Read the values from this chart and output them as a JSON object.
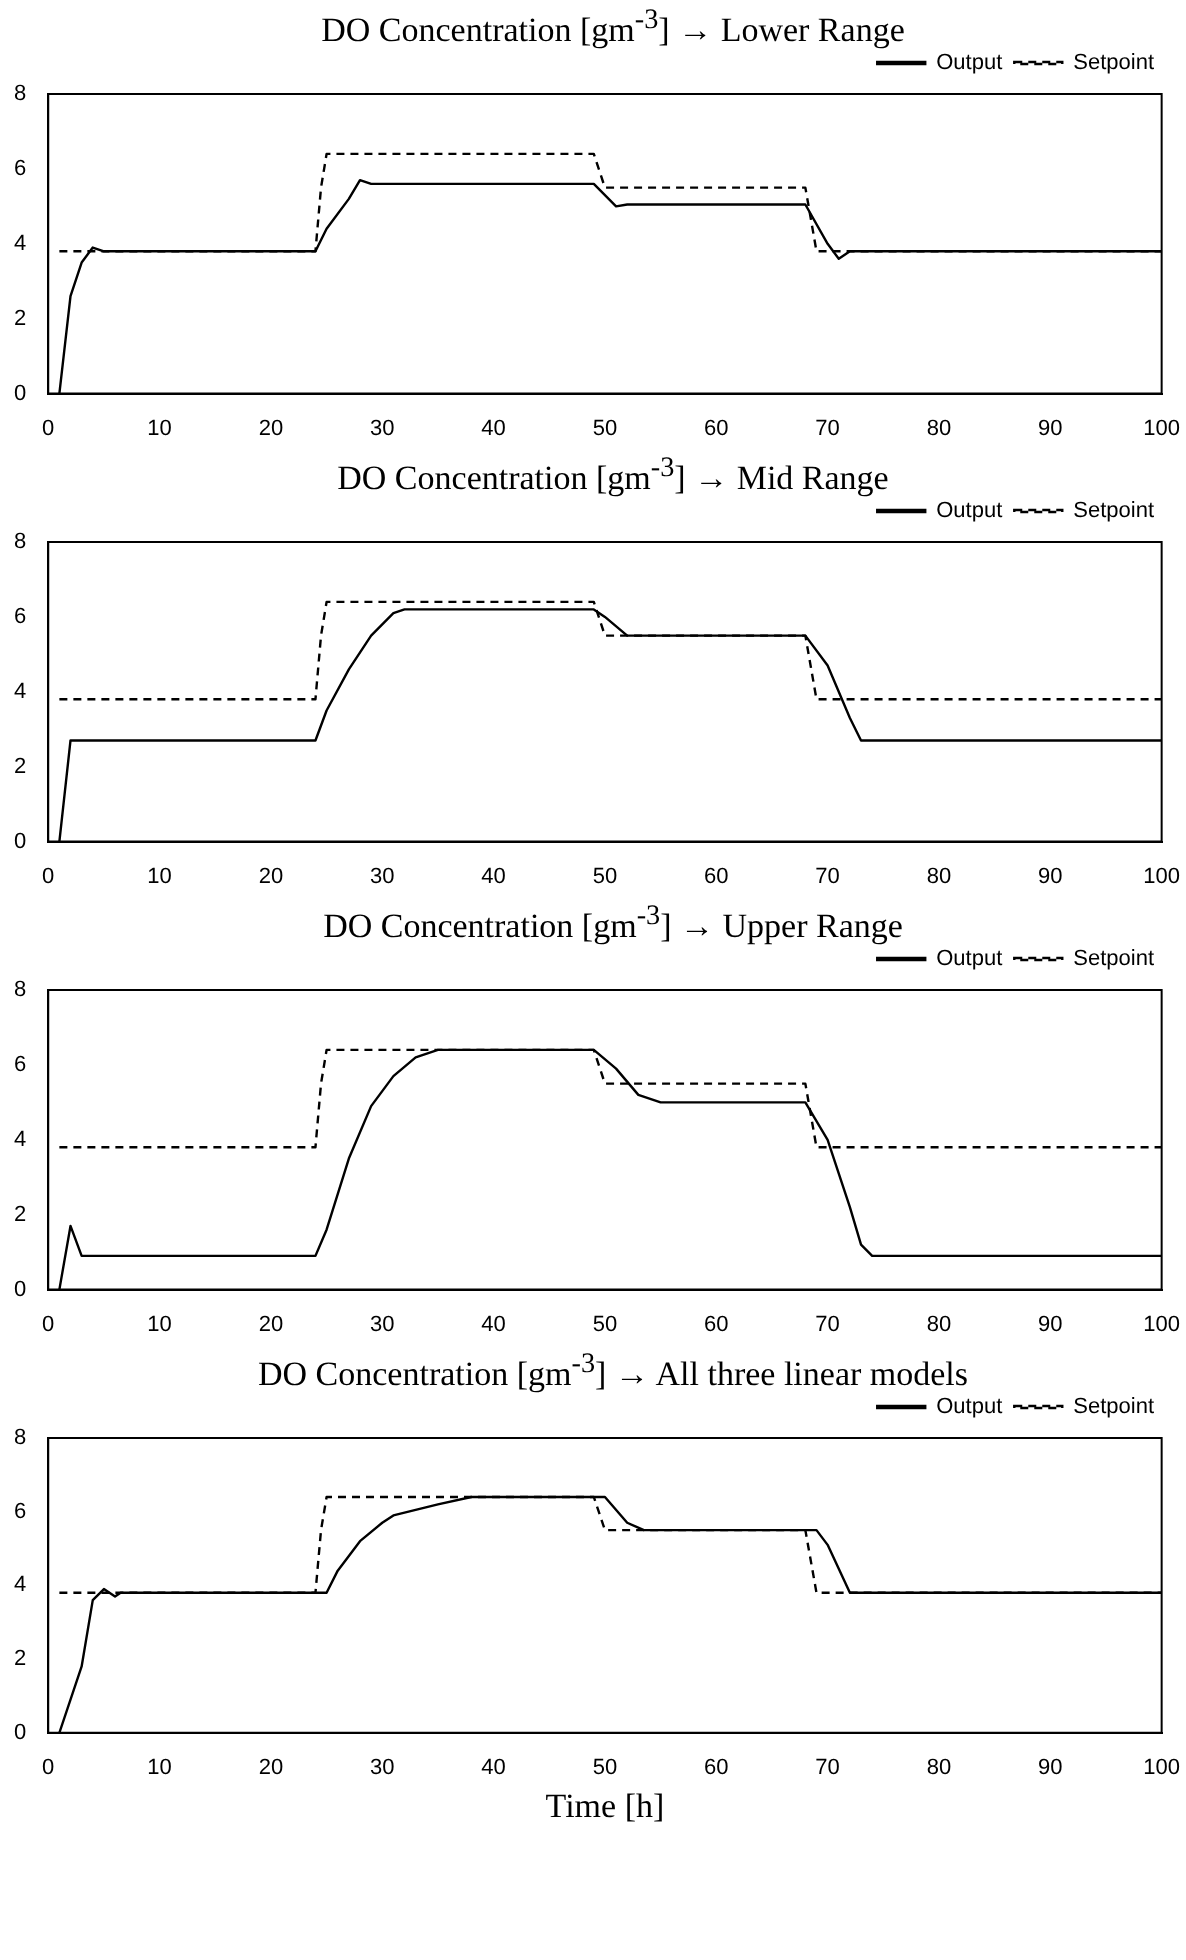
{
  "chart_data": [
    {
      "type": "line",
      "title": "DO Concentration [gm$^{-3}$] → Lower Range",
      "xlim": [
        0,
        100
      ],
      "xticks": [
        0,
        10,
        20,
        30,
        40,
        50,
        60,
        70,
        80,
        90,
        100
      ],
      "ylim": [
        0,
        8
      ],
      "yticks": [
        0,
        2,
        4,
        6,
        8
      ],
      "legend": "top right",
      "marker": "none",
      "series": [
        {
          "name": "Output",
          "color": "#000000",
          "line_style": "solid",
          "x": [
            1,
            2,
            3,
            4,
            5,
            24,
            25,
            27,
            28,
            29,
            49,
            51,
            52,
            68,
            70,
            71,
            72,
            100
          ],
          "values": [
            0,
            2.6,
            3.5,
            3.9,
            3.8,
            3.8,
            4.4,
            5.2,
            5.7,
            5.6,
            5.6,
            5.0,
            5.05,
            5.05,
            4.0,
            3.6,
            3.8,
            3.8
          ]
        },
        {
          "name": "Setpoint",
          "color": "#000000",
          "line_style": "dashed",
          "x": [
            1,
            24,
            24.5,
            25,
            49,
            50,
            68,
            69,
            100
          ],
          "values": [
            3.8,
            3.8,
            5.5,
            6.4,
            6.4,
            5.5,
            5.5,
            3.8,
            3.8
          ]
        }
      ]
    },
    {
      "type": "line",
      "title": "DO Concentration [gm$^{-3}$] → Mid Range",
      "xlim": [
        0,
        100
      ],
      "xticks": [
        0,
        10,
        20,
        30,
        40,
        50,
        60,
        70,
        80,
        90,
        100
      ],
      "ylim": [
        0,
        8
      ],
      "yticks": [
        0,
        2,
        4,
        6,
        8
      ],
      "legend": "top right",
      "marker": "none",
      "series": [
        {
          "name": "Output",
          "color": "#000000",
          "line_style": "solid",
          "x": [
            1,
            2,
            24,
            25,
            27,
            29,
            31,
            32,
            49,
            50,
            52,
            68,
            70,
            72,
            73,
            100
          ],
          "values": [
            0,
            2.7,
            2.7,
            3.5,
            4.6,
            5.5,
            6.1,
            6.2,
            6.2,
            6.0,
            5.5,
            5.5,
            4.7,
            3.3,
            2.7,
            2.7
          ]
        },
        {
          "name": "Setpoint",
          "color": "#000000",
          "line_style": "dashed",
          "x": [
            1,
            24,
            24.5,
            25,
            49,
            50,
            68,
            69,
            100
          ],
          "values": [
            3.8,
            3.8,
            5.5,
            6.4,
            6.4,
            5.5,
            5.5,
            3.8,
            3.8
          ]
        }
      ]
    },
    {
      "type": "line",
      "title": "DO Concentration [gm$^{-3}$] → Upper Range",
      "xlim": [
        0,
        100
      ],
      "xticks": [
        0,
        10,
        20,
        30,
        40,
        50,
        60,
        70,
        80,
        90,
        100
      ],
      "ylim": [
        0,
        8
      ],
      "yticks": [
        0,
        2,
        4,
        6,
        8
      ],
      "legend": "top right",
      "marker": "none",
      "series": [
        {
          "name": "Output",
          "color": "#000000",
          "line_style": "solid",
          "x": [
            1,
            2,
            3,
            24,
            25,
            27,
            29,
            31,
            33,
            35,
            49,
            51,
            53,
            55,
            68,
            70,
            72,
            73,
            74,
            100
          ],
          "values": [
            0,
            1.7,
            0.9,
            0.9,
            1.6,
            3.5,
            4.9,
            5.7,
            6.2,
            6.4,
            6.4,
            5.9,
            5.2,
            5.0,
            5.0,
            4.0,
            2.2,
            1.2,
            0.9,
            0.9
          ]
        },
        {
          "name": "Setpoint",
          "color": "#000000",
          "line_style": "dashed",
          "x": [
            1,
            24,
            24.5,
            25,
            49,
            50,
            68,
            69,
            100
          ],
          "values": [
            3.8,
            3.8,
            5.5,
            6.4,
            6.4,
            5.5,
            5.5,
            3.8,
            3.8
          ]
        }
      ]
    },
    {
      "type": "line",
      "title": "DO Concentration [gm$^{-3}$] → All three linear models",
      "xlabel": "Time [h]",
      "xlim": [
        0,
        100
      ],
      "xticks": [
        0,
        10,
        20,
        30,
        40,
        50,
        60,
        70,
        80,
        90,
        100
      ],
      "ylim": [
        0,
        8
      ],
      "yticks": [
        0,
        2,
        4,
        6,
        8
      ],
      "legend": "top right",
      "marker": "none",
      "series": [
        {
          "name": "Output",
          "color": "#000000",
          "line_style": "solid",
          "x": [
            1,
            3,
            4,
            5,
            6,
            6.5,
            25,
            26,
            28,
            30,
            31,
            35,
            38,
            50,
            52,
            53.5,
            69,
            70,
            72,
            100
          ],
          "values": [
            0,
            1.8,
            3.6,
            3.9,
            3.7,
            3.8,
            3.8,
            4.4,
            5.2,
            5.7,
            5.9,
            6.2,
            6.4,
            6.4,
            5.7,
            5.5,
            5.5,
            5.1,
            3.8,
            3.8
          ]
        },
        {
          "name": "Setpoint",
          "color": "#000000",
          "line_style": "dashed",
          "x": [
            1,
            24,
            24.5,
            25,
            49,
            50,
            68,
            69,
            100
          ],
          "values": [
            3.8,
            3.8,
            5.5,
            6.4,
            6.4,
            5.5,
            5.5,
            3.8,
            3.8
          ]
        }
      ]
    }
  ]
}
